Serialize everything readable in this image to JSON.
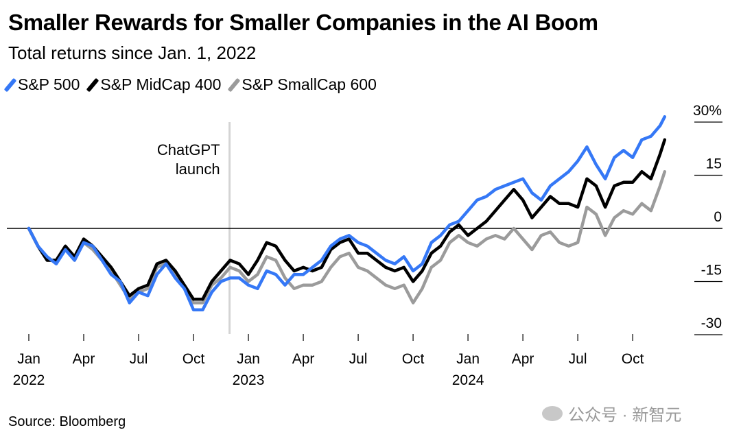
{
  "chart_data": {
    "type": "line",
    "title": "Smaller Rewards for Smaller Companies in the AI Boom",
    "subtitle": "Total returns since Jan. 1, 2022",
    "xlabel": "",
    "ylabel": "",
    "x_unit": "months since Jan 1, 2022",
    "xlim": [
      0,
      34.75
    ],
    "ylim": [
      -30,
      30
    ],
    "grid": false,
    "legend_position": "top-left",
    "y_ticks": [
      {
        "value": 30,
        "label": "30%"
      },
      {
        "value": 15,
        "label": "15"
      },
      {
        "value": 0,
        "label": "0"
      },
      {
        "value": -15,
        "label": "-15"
      },
      {
        "value": -30,
        "label": "-30"
      }
    ],
    "x_ticks": [
      {
        "value": 0,
        "label": "Jan",
        "year": "2022"
      },
      {
        "value": 3,
        "label": "Apr",
        "year": ""
      },
      {
        "value": 6,
        "label": "Jul",
        "year": ""
      },
      {
        "value": 9,
        "label": "Oct",
        "year": ""
      },
      {
        "value": 12,
        "label": "Jan",
        "year": "2023"
      },
      {
        "value": 15,
        "label": "Apr",
        "year": ""
      },
      {
        "value": 18,
        "label": "Jul",
        "year": ""
      },
      {
        "value": 21,
        "label": "Oct",
        "year": ""
      },
      {
        "value": 24,
        "label": "Jan",
        "year": "2024"
      },
      {
        "value": 27,
        "label": "Apr",
        "year": ""
      },
      {
        "value": 30,
        "label": "Jul",
        "year": ""
      },
      {
        "value": 33,
        "label": "Oct",
        "year": ""
      }
    ],
    "annotation": {
      "x": 10.97,
      "line1": "ChatGPT",
      "line2": "launch"
    },
    "x": [
      0,
      0.5,
      1,
      1.5,
      2,
      2.5,
      3,
      3.5,
      4,
      4.5,
      5,
      5.5,
      6,
      6.5,
      7,
      7.5,
      8,
      8.5,
      9,
      9.5,
      10,
      10.5,
      11,
      11.5,
      12,
      12.5,
      13,
      13.5,
      14,
      14.5,
      15,
      15.5,
      16,
      16.5,
      17,
      17.5,
      18,
      18.5,
      19,
      19.5,
      20,
      20.5,
      21,
      21.5,
      22,
      22.5,
      23,
      23.5,
      24,
      24.5,
      25,
      25.5,
      26,
      26.5,
      27,
      27.5,
      28,
      28.5,
      29,
      29.5,
      30,
      30.5,
      31,
      31.5,
      32,
      32.5,
      33,
      33.5,
      34,
      34.5,
      34.75
    ],
    "series": [
      {
        "name": "S&P SmallCap 600",
        "color": "#9b9b9b",
        "values": [
          0,
          -5,
          -9,
          -9,
          -6,
          -9,
          -4,
          -6,
          -9,
          -12,
          -16,
          -20,
          -18,
          -17,
          -11,
          -10,
          -13,
          -17,
          -21,
          -21,
          -16,
          -14,
          -11,
          -12,
          -15,
          -13,
          -8,
          -9,
          -14,
          -17,
          -16,
          -16,
          -15,
          -11,
          -8,
          -7,
          -11,
          -12,
          -14,
          -16,
          -17,
          -16,
          -21,
          -17,
          -11,
          -9,
          -4,
          -2,
          -4,
          -5,
          -3,
          -2,
          -3,
          0,
          -3,
          -6,
          -2,
          -1,
          -4,
          -5,
          -4,
          6,
          4,
          -2,
          3,
          5,
          4,
          7,
          5,
          12,
          16
        ]
      },
      {
        "name": "S&P MidCap 400",
        "color": "#000000",
        "values": [
          0,
          -5,
          -9,
          -9,
          -5,
          -8,
          -3,
          -5,
          -8,
          -11,
          -15,
          -19,
          -17,
          -16,
          -10,
          -9,
          -12,
          -16,
          -20,
          -20,
          -15,
          -12,
          -9,
          -10,
          -13,
          -9,
          -4,
          -5,
          -9,
          -12,
          -11,
          -12,
          -11,
          -6,
          -4,
          -3,
          -7,
          -7,
          -9,
          -11,
          -12,
          -11,
          -15,
          -12,
          -7,
          -5,
          -1,
          1,
          -2,
          0,
          2,
          5,
          8,
          11,
          8,
          3,
          6,
          9,
          7,
          7,
          6,
          14,
          12,
          6,
          12,
          13,
          13,
          16,
          14,
          21,
          25
        ]
      },
      {
        "name": "S&P 500",
        "color": "#3578f6",
        "values": [
          0,
          -5,
          -8,
          -10,
          -6,
          -9,
          -4,
          -5,
          -9,
          -13,
          -15,
          -21,
          -18,
          -19,
          -13,
          -10,
          -14,
          -17,
          -23,
          -23,
          -18,
          -15,
          -14,
          -14,
          -16,
          -17,
          -12,
          -13,
          -16,
          -13,
          -13,
          -11,
          -9,
          -5,
          -3,
          -2,
          -4,
          -5,
          -7,
          -9,
          -10,
          -8,
          -12,
          -10,
          -4,
          -2,
          1,
          2,
          5,
          8,
          9,
          11,
          12,
          13,
          14,
          10,
          8,
          12,
          14,
          16,
          19,
          23,
          18,
          14,
          20,
          22,
          20,
          25,
          26,
          29,
          31.5
        ]
      }
    ],
    "legend": [
      "S&P 500",
      "S&P MidCap 400",
      "S&P SmallCap 600"
    ]
  },
  "legend_colors": [
    "#3578f6",
    "#000000",
    "#9b9b9b"
  ],
  "source": "Source: Bloomberg",
  "watermark": "公众号 · 新智元"
}
